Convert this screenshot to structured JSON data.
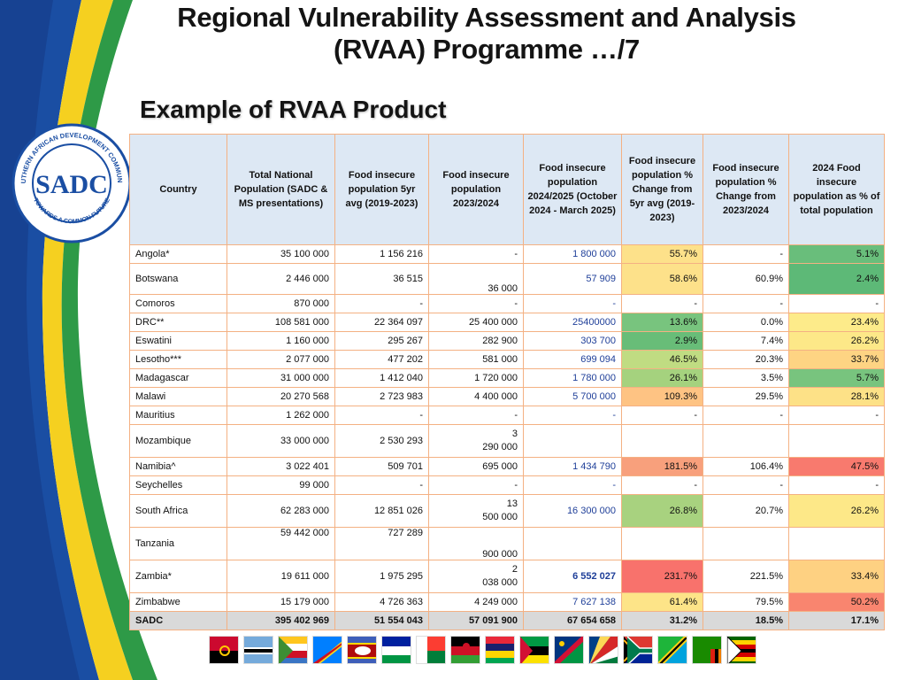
{
  "header": {
    "title_line1": "Regional Vulnerability Assessment and Analysis",
    "title_line2": "(RVAA) Programme …/7",
    "subtitle": "Example of RVAA Product"
  },
  "logo": {
    "center_text": "SADC",
    "ring_top": "SOUTHERN AFRICAN DEVELOPMENT COMMUNITY",
    "ring_bottom": "TOWARDS A COMMON FUTURE"
  },
  "table": {
    "headers": [
      "Country",
      "Total National Population (SADC & MS presentations)",
      "Food insecure population 5yr avg (2019-2023)",
      "Food insecure population 2023/2024",
      "Food insecure population 2024/2025 (October 2024 - March 2025)",
      "Food insecure population % Change from 5yr avg (2019-2023)",
      "Food insecure population % Change from 2023/2024",
      "2024 Food insecure population as % of total population"
    ],
    "rows": [
      {
        "country": "Angola*",
        "total": "35 100 000",
        "avg5": "1 156 216",
        "y2324": "-",
        "y2425": "1 800 000",
        "chg5": "55.7%",
        "chg2324": "-",
        "pct": "5.1%"
      },
      {
        "country": "Botswana",
        "total": "2 446 000",
        "avg5": "36 515",
        "y2324": "36 000",
        "y2425": "57 909",
        "chg5": "58.6%",
        "chg2324": "60.9%",
        "pct": "2.4%"
      },
      {
        "country": "Comoros",
        "total": "870 000",
        "avg5": "-",
        "y2324": "-",
        "y2425": "-",
        "chg5": "-",
        "chg2324": "-",
        "pct": "-"
      },
      {
        "country": "DRC**",
        "total": "108 581 000",
        "avg5": "22 364 097",
        "y2324": "25 400 000",
        "y2425": "25400000",
        "chg5": "13.6%",
        "chg2324": "0.0%",
        "pct": "23.4%"
      },
      {
        "country": "Eswatini",
        "total": "1 160 000",
        "avg5": "295 267",
        "y2324": "282 900",
        "y2425": "303 700",
        "chg5": "2.9%",
        "chg2324": "7.4%",
        "pct": "26.2%"
      },
      {
        "country": "Lesotho***",
        "total": "2 077 000",
        "avg5": "477 202",
        "y2324": "581 000",
        "y2425": "699 094",
        "chg5": "46.5%",
        "chg2324": "20.3%",
        "pct": "33.7%"
      },
      {
        "country": "Madagascar",
        "total": "31 000 000",
        "avg5": "1 412 040",
        "y2324": "1 720 000",
        "y2425": "1 780 000",
        "chg5": "26.1%",
        "chg2324": "3.5%",
        "pct": "5.7%"
      },
      {
        "country": "Malawi",
        "total": "20 270 568",
        "avg5": "2 723 983",
        "y2324": "4 400 000",
        "y2425": "5 700 000",
        "chg5": "109.3%",
        "chg2324": "29.5%",
        "pct": "28.1%"
      },
      {
        "country": "Mauritius",
        "total": "1 262 000",
        "avg5": "-",
        "y2324": "-",
        "y2425": "-",
        "chg5": "-",
        "chg2324": "-",
        "pct": "-"
      },
      {
        "country": "Mozambique",
        "total": "33 000 000",
        "avg5": "2 530 293",
        "y2324a": "3",
        "y2324b": "290 000",
        "y2425": "",
        "chg5": "",
        "chg2324": "",
        "pct": ""
      },
      {
        "country": "Namibia^",
        "total": "3 022 401",
        "avg5": "509 701",
        "y2324": "695 000",
        "y2425": "1 434 790",
        "chg5": "181.5%",
        "chg2324": "106.4%",
        "pct": "47.5%"
      },
      {
        "country": "Seychelles",
        "total": "99 000",
        "avg5": "-",
        "y2324": "-",
        "y2425": "-",
        "chg5": "-",
        "chg2324": "-",
        "pct": "-"
      },
      {
        "country": "South Africa",
        "total": "62 283 000",
        "avg5": "12 851 026",
        "y2324a": "13",
        "y2324b": "500 000",
        "y2425": "16 300 000",
        "chg5": "26.8%",
        "chg2324": "20.7%",
        "pct": "26.2%"
      },
      {
        "country": "Tanzania",
        "total": "59 442 000",
        "avg5": "727 289",
        "y2324": "900 000",
        "y2425": "",
        "chg5": "",
        "chg2324": "",
        "pct": ""
      },
      {
        "country": "Zambia*",
        "total": "19 611 000",
        "avg5": "1 975 295",
        "y2324a": "2",
        "y2324b": "038 000",
        "y2425": "6 552 027",
        "chg5": "231.7%",
        "chg2324": "221.5%",
        "pct": "33.4%"
      },
      {
        "country": "Zimbabwe",
        "total": "15 179 000",
        "avg5": "4 726 363",
        "y2324": "4 249 000",
        "y2425": "7 627 138",
        "chg5": "61.4%",
        "chg2324": "79.5%",
        "pct": "50.2%"
      }
    ],
    "total": {
      "country": "SADC",
      "total": "395 402 969",
      "avg5": "51 554 043",
      "y2324": "57 091 900",
      "y2425": "67 654 658",
      "chg5": "31.2%",
      "chg2324": "18.5%",
      "pct": "17.1%"
    }
  },
  "colors": {
    "chg5": {
      "Angola*": "#fde18a",
      "Botswana": "#fde18a",
      "DRC**": "#78c47e",
      "Eswatini": "#68bd78",
      "Lesotho***": "#c0dc82",
      "Madagascar": "#a5d27e",
      "Malawi": "#fec383",
      "Namibia^": "#f8a07c",
      "South Africa": "#a8d27f",
      "Zambia*": "#f8726c",
      "Zimbabwe": "#fde488"
    },
    "pct": {
      "Angola*": "#69be7b",
      "Botswana": "#5db977",
      "DRC**": "#fdeb8a",
      "Eswatini": "#fde888",
      "Lesotho***": "#fed483",
      "Madagascar": "#78c47e",
      "Malawi": "#fde187",
      "Namibia^": "#f87a6e",
      "South Africa": "#fde888",
      "Zambia*": "#fed182",
      "Zimbabwe": "#f9856f"
    }
  },
  "flags": [
    "Angola",
    "Botswana",
    "Comoros",
    "DRC",
    "Eswatini",
    "Lesotho",
    "Madagascar",
    "Malawi",
    "Mauritius",
    "Mozambique",
    "Namibia",
    "Seychelles",
    "South Africa",
    "Tanzania",
    "Zambia",
    "Zimbabwe"
  ]
}
